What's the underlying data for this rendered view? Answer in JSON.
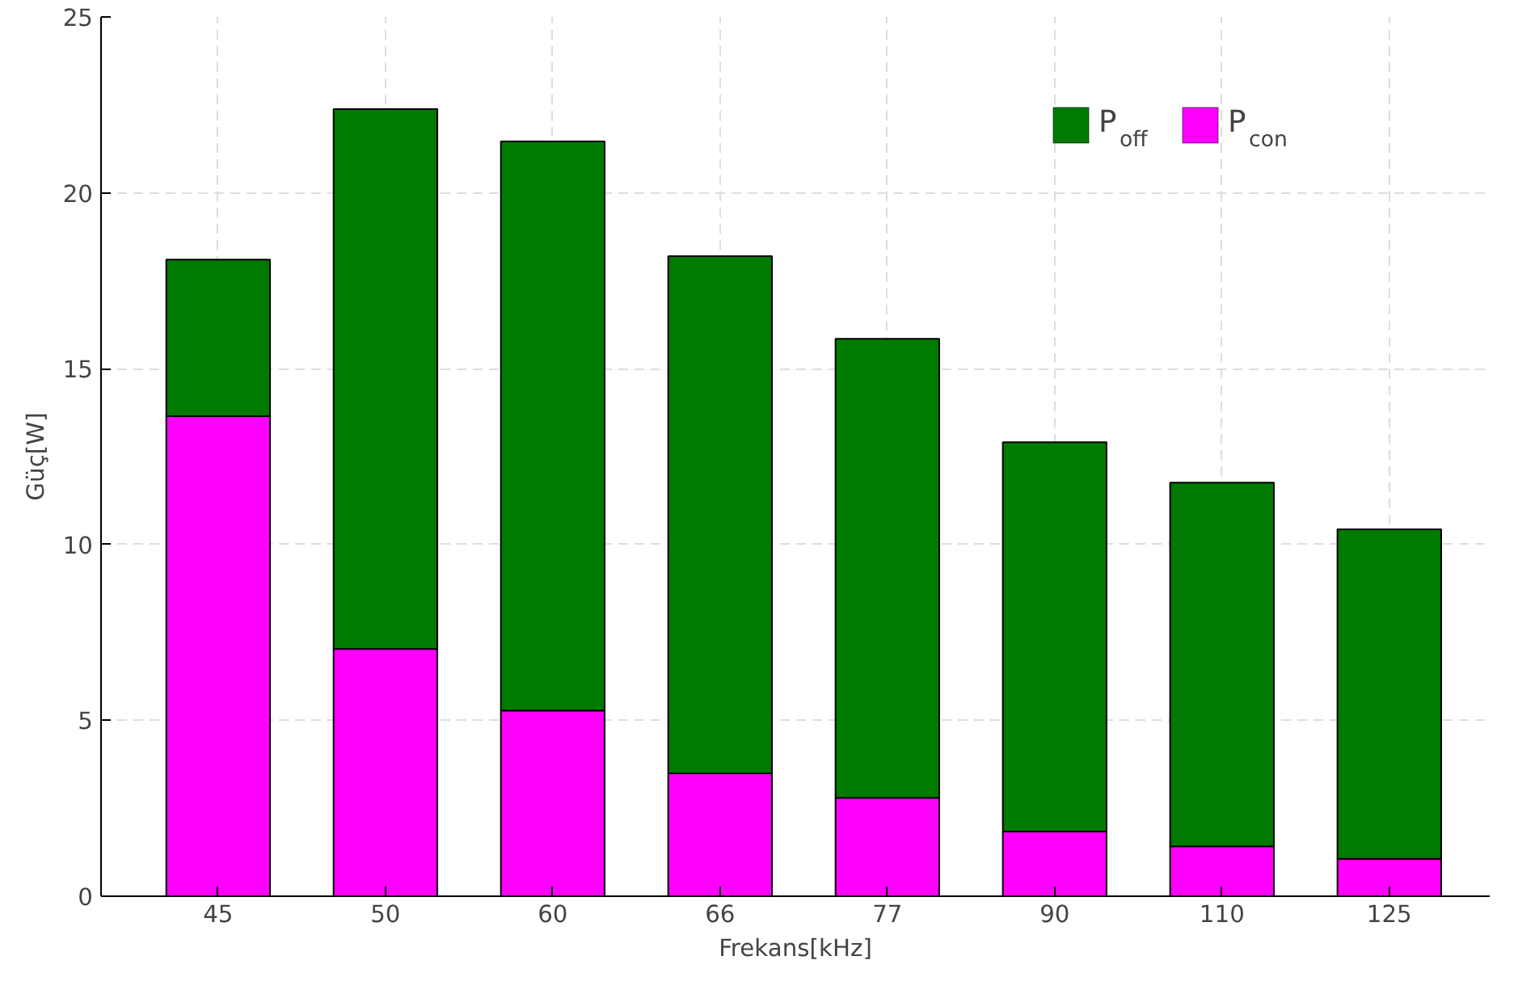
{
  "chart_data": {
    "type": "bar",
    "stacked": true,
    "xlabel": "Frekans[kHz]",
    "ylabel": "Güç[W]",
    "categories": [
      "45",
      "50",
      "60",
      "66",
      "77",
      "90",
      "110",
      "125"
    ],
    "series": [
      {
        "name": "P$_{con}$",
        "color": "#ff00ff",
        "values": [
          13.65,
          7.03,
          5.28,
          3.49,
          2.8,
          1.84,
          1.42,
          1.06
        ]
      },
      {
        "name": "P$_{off}$",
        "color": "#007a00",
        "values": [
          4.45,
          15.35,
          16.18,
          14.71,
          13.05,
          11.07,
          10.34,
          9.37
        ]
      }
    ],
    "ylim": [
      0,
      25
    ],
    "yticks": [
      0,
      5,
      10,
      15,
      20,
      25
    ],
    "grid": true,
    "legend": "top right"
  }
}
